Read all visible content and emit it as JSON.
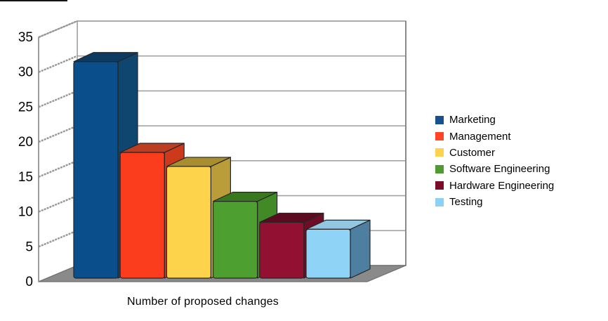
{
  "chart_data": {
    "type": "bar",
    "projection": "3d-oblique",
    "title": "",
    "xlabel": "Number of proposed changes",
    "ylabel": "",
    "categories": [
      "Marketing",
      "Management",
      "Customer",
      "Software Engineering",
      "Hardware Engineering",
      "Testing"
    ],
    "values": [
      31,
      18,
      16,
      11,
      8,
      7
    ],
    "ylim": [
      0,
      35
    ],
    "ytick_step": 5,
    "yticks": [
      "0",
      "5",
      "10",
      "15",
      "20",
      "25",
      "30",
      "35"
    ],
    "grid": true,
    "legend_position": "right",
    "bar_colors": [
      {
        "front": "#0A4E8B",
        "top": "#0D3A61",
        "side": "#0F466F",
        "legend": "#17508F"
      },
      {
        "front": "#FB3D1D",
        "top": "#BE3D20",
        "side": "#CC3A1B",
        "legend": "#FF4524"
      },
      {
        "front": "#FCD34B",
        "top": "#A98E2F",
        "side": "#BA9C38",
        "legend": "#FFD24E"
      },
      {
        "front": "#4DA02F",
        "top": "#39781F",
        "side": "#428A26",
        "legend": "#4F9B31"
      },
      {
        "front": "#921031",
        "top": "#5C0A1E",
        "side": "#6F0C26",
        "legend": "#7C0D2A"
      },
      {
        "front": "#8FD3F6",
        "top": "#95C6E1",
        "side": "#4E7FA0",
        "legend": "#8ED1F5"
      }
    ],
    "style_colors": {
      "floor": "#8A8A8A",
      "floor_edge": "#6E6E6E",
      "wall_fill": "#FFFFFF",
      "wall_border": "#9A9A9A",
      "gridline": "#A3A3A3",
      "side_gridline": "#969696",
      "axis_line": "#8C8C8C",
      "bar_outline": "#262626",
      "text": "#000000"
    }
  }
}
